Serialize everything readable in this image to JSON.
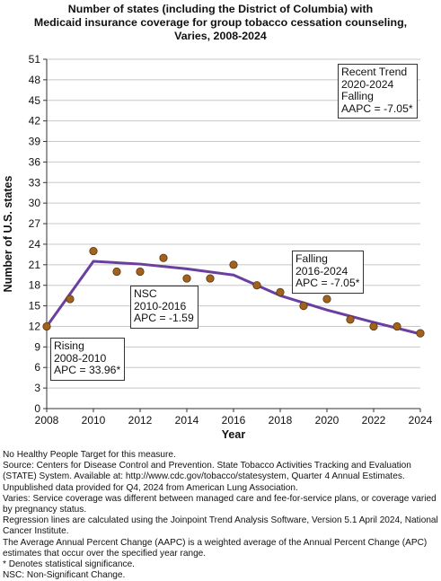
{
  "chart_data": {
    "type": "line",
    "title_lines": [
      "Number of states (including the District of Columbia) with",
      "Medicaid insurance coverage for group tobacco cessation counseling,",
      "Varies,  2008-2024"
    ],
    "xlabel": "Year",
    "ylabel": "Number of U.S. states",
    "xlim": [
      2008,
      2024
    ],
    "ylim": [
      0,
      51
    ],
    "x_ticks": [
      2008,
      2010,
      2012,
      2014,
      2016,
      2018,
      2020,
      2022,
      2024
    ],
    "y_ticks": [
      0,
      3,
      6,
      9,
      12,
      15,
      18,
      21,
      24,
      27,
      30,
      33,
      36,
      39,
      42,
      45,
      48,
      51
    ],
    "grid": true,
    "series": [
      {
        "kind": "observed",
        "color": "#a0621c",
        "x": [
          2008,
          2009,
          2010,
          2011,
          2012,
          2013,
          2014,
          2015,
          2016,
          2017,
          2018,
          2019,
          2020,
          2021,
          2022,
          2023,
          2024
        ],
        "values": [
          12,
          16,
          23,
          20,
          20,
          22,
          19,
          19,
          21,
          18,
          17,
          15,
          16,
          13,
          12,
          12,
          11
        ]
      },
      {
        "kind": "trend",
        "color": "#6b3fa0",
        "x": [
          2008,
          2010,
          2012,
          2014,
          2016,
          2018,
          2020,
          2022,
          2024
        ],
        "values": [
          12,
          21.5,
          21.1,
          20.4,
          19.5,
          16.5,
          14.4,
          12.6,
          10.9
        ]
      }
    ],
    "annotations": [
      {
        "id": "rising",
        "lines": [
          "Rising",
          "2008-2010",
          "APC = 33.96*"
        ]
      },
      {
        "id": "nsc",
        "lines": [
          "NSC",
          "2010-2016",
          "APC = -1.59"
        ]
      },
      {
        "id": "falling",
        "lines": [
          "Falling",
          "2016-2024",
          "APC = -7.05*"
        ]
      },
      {
        "id": "recent",
        "lines": [
          "Recent Trend",
          "2020-2024",
          "Falling",
          "AAPC = -7.05*"
        ]
      }
    ]
  },
  "footnotes": [
    "No Healthy People Target for this measure.",
    "Source: Centers for Disease Control and Prevention. State Tobacco Activities Tracking and Evaluation (STATE) System. Available at: http://www.cdc.gov/tobacco/statesystem, Quarter 4 Annual Estimates. Unpublished data provided for Q4, 2024 from American Lung Association.",
    "Varies: Service coverage was different between managed care and fee-for-service plans, or coverage varied by pregnancy status.",
    "Regression lines are calculated using the Joinpoint Trend Analysis Software, Version 5.1 April 2024, National Cancer Institute.",
    "The Average Annual Percent Change (AAPC) is a weighted average of the Annual Percent Change (APC) estimates that occur over the specified year range.",
    "* Denotes statistical significance.",
    "NSC: Non-Significant Change."
  ]
}
